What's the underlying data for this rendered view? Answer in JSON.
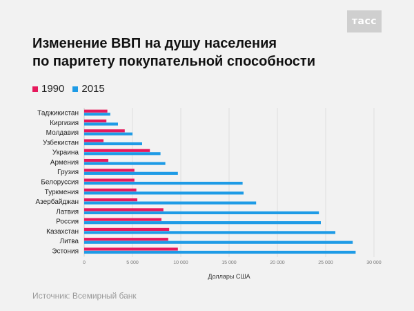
{
  "logo": "тасс",
  "title_line1": "Изменение ВВП на душу населения",
  "title_line2": "по паритету покупательной способности",
  "source": "Источник: Всемирный банк",
  "colors": {
    "series_1990": "#e6195c",
    "series_2015": "#1e9be6"
  },
  "chart_data": {
    "type": "bar",
    "orientation": "horizontal",
    "categories": [
      "Таджикистан",
      "Киргизия",
      "Молдавия",
      "Узбекистан",
      "Украина",
      "Армения",
      "Грузия",
      "Белоруссия",
      "Туркмения",
      "Азербайджан",
      "Латвия",
      "Россия",
      "Казахстан",
      "Литва",
      "Эстония"
    ],
    "series": [
      {
        "name": "1990",
        "color": "#e6195c",
        "values": [
          2400,
          2300,
          4200,
          2000,
          6800,
          2500,
          5200,
          5200,
          5400,
          5500,
          8200,
          8000,
          8800,
          8700,
          9700
        ]
      },
      {
        "name": "2015",
        "color": "#1e9be6",
        "values": [
          2700,
          3500,
          5000,
          6000,
          7900,
          8400,
          9700,
          16400,
          16500,
          17800,
          24300,
          24500,
          26000,
          27800,
          28100
        ]
      }
    ],
    "xlabel": "Доллары США",
    "xlim": [
      0,
      30000
    ],
    "xticks": [
      0,
      5000,
      10000,
      15000,
      20000,
      25000,
      30000
    ],
    "xtick_labels": [
      "0",
      "5 000",
      "10 000",
      "15 000",
      "20 000",
      "25 000",
      "30 000"
    ],
    "grid": "vertical",
    "legend_position": "top-left"
  }
}
